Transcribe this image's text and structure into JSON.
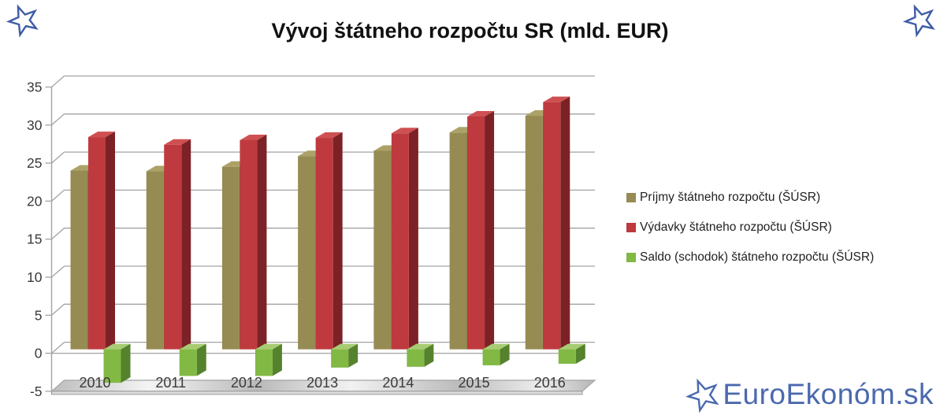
{
  "title": "Vývoj štátneho rozpočtu SR (mld. EUR)",
  "watermark": {
    "text": "EuroEkonóm.sk"
  },
  "icons": {
    "corner_star": "outlined-blue-star",
    "watermark_star": "outlined-blue-star"
  },
  "colors": {
    "title_text": "#111111",
    "axis_text": "#3a3a3a",
    "gridline": "#a3a3a3",
    "floor_gray": "#c4c4c4",
    "watermark_blue": "#4a69ae",
    "prijmy_front": "#968b53",
    "prijmy_top": "#aca268",
    "prijmy_side": "#6b6336",
    "vydavky_front": "#be3a3e",
    "vydavky_top": "#cf5052",
    "vydavky_side": "#7c2226",
    "saldo_front": "#82b844",
    "saldo_top": "#a7cc72",
    "saldo_side": "#55822c"
  },
  "chart_data": {
    "type": "bar",
    "style": "3d-column",
    "title": "Vývoj štátneho rozpočtu SR (mld. EUR)",
    "categories": [
      "2010",
      "2011",
      "2012",
      "2013",
      "2014",
      "2015",
      "2016"
    ],
    "series": [
      {
        "name": "Príjmy štátneho rozpočtu (ŠÚSR)",
        "color": "#968b53",
        "values": [
          23.5,
          23.4,
          24.0,
          25.4,
          26.1,
          28.5,
          30.7
        ]
      },
      {
        "name": "Výdavky štátneho rozpočtu (ŠÚSR)",
        "color": "#be3a3e",
        "values": [
          27.9,
          26.9,
          27.5,
          27.8,
          28.4,
          30.6,
          32.5
        ]
      },
      {
        "name": "Saldo (schodok) štátneho rozpočtu (ŠÚSR)",
        "color": "#82b844",
        "values": [
          -4.4,
          -3.5,
          -3.5,
          -2.4,
          -2.3,
          -2.1,
          -1.9
        ]
      }
    ],
    "xlabel": "",
    "ylabel": "",
    "ylim": [
      -5,
      35
    ],
    "yticks": [
      35,
      30,
      25,
      20,
      15,
      10,
      5,
      0,
      -5
    ],
    "grid": true,
    "legend_position": "right"
  }
}
